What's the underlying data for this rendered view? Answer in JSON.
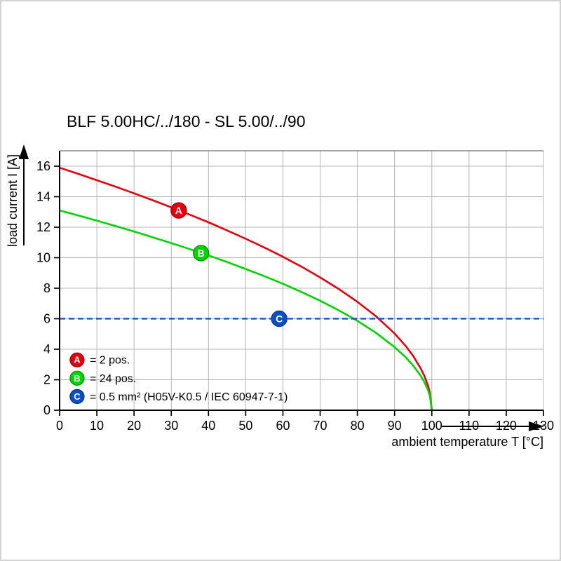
{
  "title": "BLF 5.00HC/../180 - SL 5.00/../90",
  "chart_data": {
    "type": "line",
    "title": "BLF 5.00HC/../180 - SL 5.00/../90",
    "xlabel": "ambient temperature T [°C]",
    "ylabel": "load current I [A]",
    "xlim": [
      0,
      130
    ],
    "ylim": [
      0,
      16
    ],
    "xticks": [
      0,
      10,
      20,
      30,
      40,
      50,
      60,
      70,
      80,
      90,
      100,
      110,
      120,
      130
    ],
    "yticks": [
      0,
      2,
      4,
      6,
      8,
      10,
      12,
      14,
      16
    ],
    "grid": true,
    "legend_position": "lower-left",
    "series": [
      {
        "name": "A",
        "label": "= 2 pos.",
        "color": "#e2000f",
        "edge": "#9c000a",
        "style": "solid",
        "marker_at": [
          32,
          13.1
        ],
        "points": [
          [
            0,
            15.9
          ],
          [
            5,
            15.5
          ],
          [
            10,
            15.08
          ],
          [
            15,
            14.66
          ],
          [
            20,
            14.22
          ],
          [
            25,
            13.77
          ],
          [
            30,
            13.3
          ],
          [
            35,
            12.82
          ],
          [
            40,
            12.32
          ],
          [
            45,
            11.79
          ],
          [
            50,
            11.24
          ],
          [
            55,
            10.67
          ],
          [
            60,
            10.06
          ],
          [
            65,
            9.41
          ],
          [
            70,
            8.71
          ],
          [
            75,
            7.95
          ],
          [
            80,
            7.11
          ],
          [
            85,
            6.16
          ],
          [
            90,
            5.03
          ],
          [
            93,
            4.21
          ],
          [
            95,
            3.56
          ],
          [
            97,
            2.75
          ],
          [
            98,
            2.25
          ],
          [
            99,
            1.59
          ],
          [
            99.5,
            1.12
          ],
          [
            100,
            0
          ]
        ]
      },
      {
        "name": "B",
        "label": "= 24 pos.",
        "color": "#00d300",
        "edge": "#009a00",
        "style": "solid",
        "marker_at": [
          38,
          10.3
        ],
        "points": [
          [
            0,
            13.1
          ],
          [
            5,
            12.77
          ],
          [
            10,
            12.43
          ],
          [
            15,
            12.08
          ],
          [
            20,
            11.72
          ],
          [
            25,
            11.34
          ],
          [
            30,
            10.96
          ],
          [
            35,
            10.56
          ],
          [
            40,
            10.15
          ],
          [
            45,
            9.72
          ],
          [
            50,
            9.26
          ],
          [
            55,
            8.79
          ],
          [
            60,
            8.29
          ],
          [
            65,
            7.75
          ],
          [
            70,
            7.18
          ],
          [
            75,
            6.55
          ],
          [
            80,
            5.86
          ],
          [
            85,
            5.07
          ],
          [
            90,
            4.14
          ],
          [
            93,
            3.47
          ],
          [
            95,
            2.93
          ],
          [
            97,
            2.27
          ],
          [
            98,
            1.85
          ],
          [
            99,
            1.31
          ],
          [
            99.5,
            0.93
          ],
          [
            100,
            0
          ]
        ]
      },
      {
        "name": "C",
        "label": "= 0.5 mm² (H05V-K0.5 / IEC 60947-7-1)",
        "color": "#0b4fc4",
        "edge": "#083a92",
        "style": "dashed",
        "marker_at": [
          59,
          6
        ],
        "points": [
          [
            0,
            6
          ],
          [
            130,
            6
          ]
        ]
      }
    ]
  }
}
